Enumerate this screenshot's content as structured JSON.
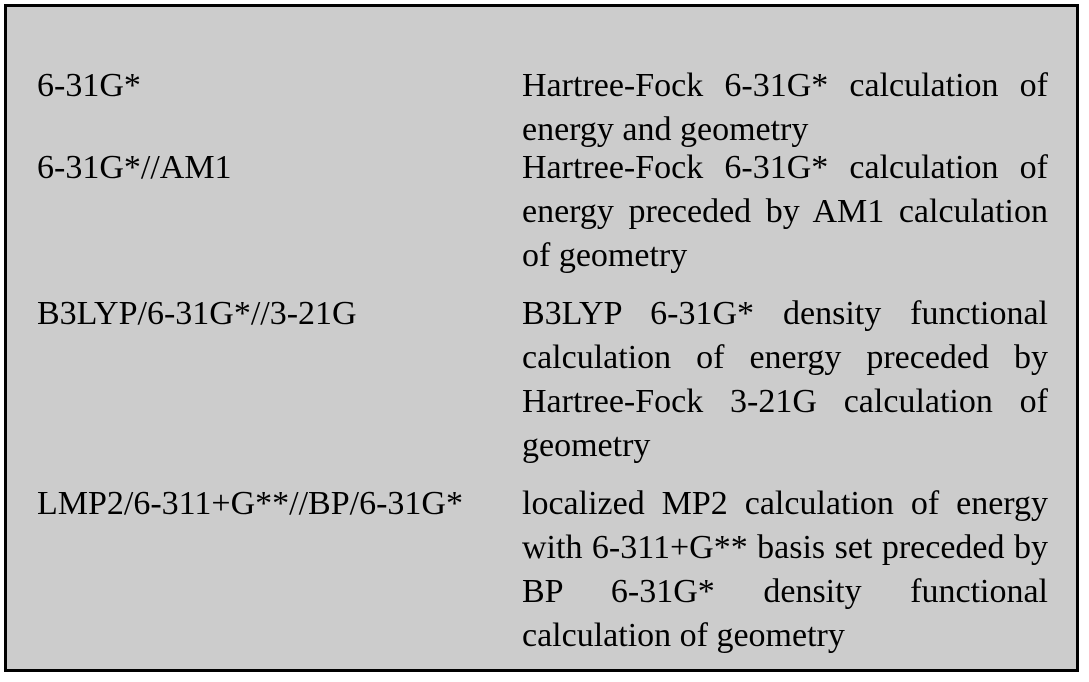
{
  "rows": [
    {
      "term": "6-31G*",
      "description": "Hartree-Fock 6-31G* calculation of energy and geometry"
    },
    {
      "term": "6-31G*//AM1",
      "description": "Hartree-Fock 6-31G* calculation of energy preceded by AM1 calculation of geometry"
    },
    {
      "term": "B3LYP/6-31G*//3-21G",
      "description": "B3LYP 6-31G* density functional calculation of energy preceded by Hartree-Fock 3-21G calculation of geometry"
    },
    {
      "term": "LMP2/6-311+G**//BP/6-31G*",
      "description": "localized MP2 calculation of energy with 6-311+G** basis set preceded by BP 6-31G* density functional calculation of geometry"
    }
  ],
  "colors": {
    "panel_background": "#cccccc",
    "border": "#000000",
    "text": "#000000"
  }
}
